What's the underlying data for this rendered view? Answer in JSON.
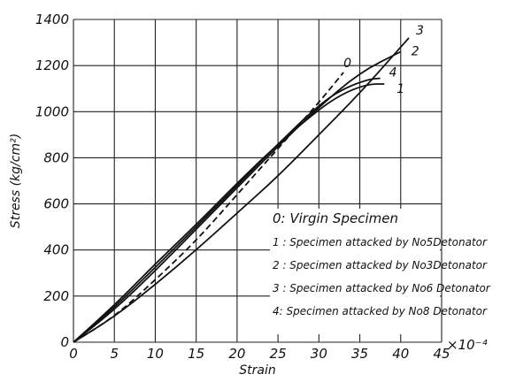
{
  "chart_data": {
    "type": "line",
    "xlabel": "Strain",
    "x_unit_label": "×10⁻⁴",
    "ylabel": "Stress (kg/cm²)",
    "xlim": [
      0,
      45
    ],
    "ylim": [
      0,
      1400
    ],
    "xticks": [
      0,
      5,
      10,
      15,
      20,
      25,
      30,
      35,
      40,
      45
    ],
    "yticks": [
      0,
      200,
      400,
      600,
      800,
      1000,
      1200,
      1400
    ],
    "grid": true,
    "legend_position": "bottom-right",
    "series": [
      {
        "name": "0",
        "label": "0",
        "style": "dashed",
        "points": [
          [
            0,
            0
          ],
          [
            5,
            110
          ],
          [
            10,
            270
          ],
          [
            15,
            440
          ],
          [
            20,
            640
          ],
          [
            25,
            840
          ],
          [
            30,
            1040
          ],
          [
            33,
            1170
          ]
        ]
      },
      {
        "name": "1",
        "label": "1",
        "style": "solid",
        "points": [
          [
            0,
            0
          ],
          [
            5,
            160
          ],
          [
            10,
            340
          ],
          [
            15,
            510
          ],
          [
            20,
            690
          ],
          [
            25,
            860
          ],
          [
            30,
            1010
          ],
          [
            33,
            1080
          ],
          [
            36,
            1120
          ],
          [
            38,
            1120
          ]
        ]
      },
      {
        "name": "2",
        "label": "2",
        "style": "solid",
        "points": [
          [
            0,
            0
          ],
          [
            5,
            140
          ],
          [
            10,
            310
          ],
          [
            15,
            490
          ],
          [
            20,
            670
          ],
          [
            25,
            850
          ],
          [
            30,
            1020
          ],
          [
            35,
            1170
          ],
          [
            40,
            1260
          ]
        ]
      },
      {
        "name": "3",
        "label": "3",
        "style": "solid",
        "points": [
          [
            0,
            0
          ],
          [
            5,
            110
          ],
          [
            10,
            250
          ],
          [
            15,
            400
          ],
          [
            20,
            560
          ],
          [
            25,
            720
          ],
          [
            30,
            900
          ],
          [
            35,
            1080
          ],
          [
            39.5,
            1260
          ],
          [
            41,
            1320
          ]
        ]
      },
      {
        "name": "4",
        "label": "4",
        "style": "solid",
        "points": [
          [
            0,
            0
          ],
          [
            5,
            150
          ],
          [
            10,
            325
          ],
          [
            15,
            500
          ],
          [
            20,
            680
          ],
          [
            25,
            860
          ],
          [
            30,
            1030
          ],
          [
            33,
            1100
          ],
          [
            36,
            1140
          ],
          [
            37.5,
            1145
          ]
        ]
      }
    ],
    "legend": [
      "0: Virgin Specimen",
      "1 : Specimen attacked by No5Detonator",
      "2 : Specimen attacked by No3Detonator",
      "3 : Specimen attacked by No6 Detonator",
      "4: Specimen attacked by No8 Detonator"
    ]
  }
}
